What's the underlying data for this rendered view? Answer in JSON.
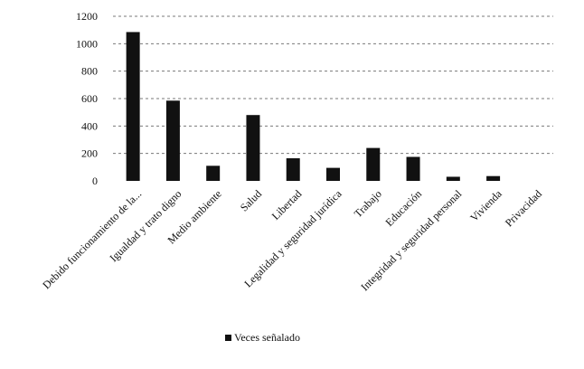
{
  "chart_data": {
    "type": "bar",
    "categories": [
      "Debido funcionamiento de la...",
      "Igualdad y trato digno",
      "Medio ambiente",
      "Salud",
      "Libertad",
      "Legalidad y seguridad jurídica",
      "Trabajo",
      "Educación",
      "Integridad y seguridad personal",
      "Vivienda",
      "Privacidad"
    ],
    "series": [
      {
        "name": "Veces señalado",
        "values": [
          1085,
          585,
          110,
          480,
          165,
          95,
          240,
          175,
          30,
          35,
          0
        ],
        "color": "#111111"
      }
    ],
    "title": "",
    "xlabel": "",
    "ylabel": "",
    "ylim": [
      0,
      1200
    ],
    "yticks": [
      0,
      200,
      400,
      600,
      800,
      1000,
      1200
    ],
    "grid": true,
    "legend_position": "bottom"
  }
}
